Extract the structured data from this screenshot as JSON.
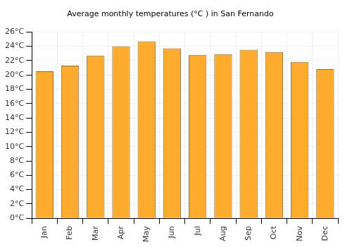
{
  "chart_data": {
    "type": "bar",
    "title": "Average monthly temperatures (°C ) in San Fernando",
    "categories": [
      "Jan",
      "Feb",
      "Mar",
      "Apr",
      "May",
      "Jun",
      "Jul",
      "Aug",
      "Sep",
      "Oct",
      "Nov",
      "Dec"
    ],
    "values": [
      20.5,
      21.3,
      22.7,
      24.0,
      24.7,
      23.7,
      22.8,
      22.9,
      23.5,
      23.2,
      21.8,
      20.8
    ],
    "color": "#ffab2e",
    "ylim": [
      0,
      26
    ],
    "yticks": [
      {
        "value": 0,
        "label": "0°C"
      },
      {
        "value": 2,
        "label": "2°C"
      },
      {
        "value": 4,
        "label": "4°C"
      },
      {
        "value": 6,
        "label": "6°C"
      },
      {
        "value": 8,
        "label": "8°C"
      },
      {
        "value": 10,
        "label": "10°C"
      },
      {
        "value": 12,
        "label": "12°C"
      },
      {
        "value": 14,
        "label": "14°C"
      },
      {
        "value": 16,
        "label": "16°C"
      },
      {
        "value": 18,
        "label": "18°C"
      },
      {
        "value": 20,
        "label": "20°C"
      },
      {
        "value": 22,
        "label": "22°C"
      },
      {
        "value": 24,
        "label": "24°C"
      },
      {
        "value": 26,
        "label": "26°C"
      }
    ],
    "grid": true
  }
}
